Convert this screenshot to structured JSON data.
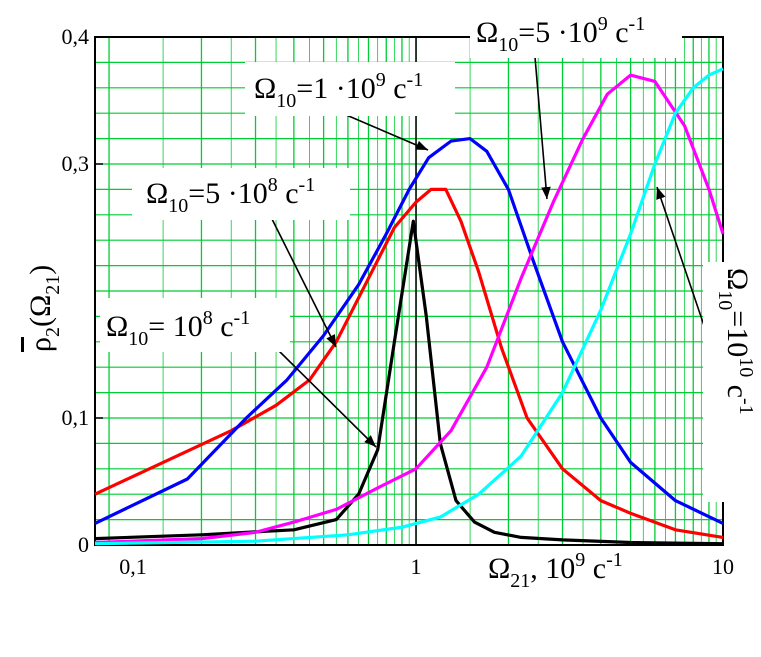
{
  "chart_data": {
    "type": "line",
    "x_scale": "log",
    "xlim": [
      0.09,
      10
    ],
    "ylim": [
      0,
      0.4
    ],
    "xlabel": {
      "base": "Ω",
      "sub": "21",
      "rest": ", 10",
      "sup": "9",
      "unit": " с",
      "unit_sup": "-1"
    },
    "ylabel": {
      "base": "ρ",
      "sub": "2",
      "paren_base": "(Ω",
      "paren_sub": "21",
      "close": ")"
    },
    "x_ticks": [
      {
        "value": 0.1,
        "label": "0,1"
      },
      {
        "value": 1,
        "label": "1"
      },
      {
        "value": 10,
        "label": "10"
      }
    ],
    "y_ticks": [
      {
        "value": 0,
        "label": "0"
      },
      {
        "value": 0.1,
        "label": "0,1"
      },
      {
        "value": 0.3,
        "label": "0,3"
      },
      {
        "value": 0.4,
        "label": "0,4"
      }
    ],
    "grid": true,
    "series": [
      {
        "color": "#000000",
        "x": [
          0.09,
          0.2,
          0.4,
          0.55,
          0.65,
          0.75,
          0.85,
          0.98,
          1.08,
          1.2,
          1.35,
          1.55,
          1.8,
          2.2,
          3,
          5,
          10
        ],
        "y": [
          0.005,
          0.008,
          0.012,
          0.02,
          0.04,
          0.075,
          0.16,
          0.255,
          0.18,
          0.08,
          0.035,
          0.018,
          0.01,
          0.006,
          0.004,
          0.002,
          0.001
        ]
      },
      {
        "color": "#ff0000",
        "x": [
          0.09,
          0.15,
          0.25,
          0.35,
          0.45,
          0.55,
          0.7,
          0.85,
          1.0,
          1.12,
          1.25,
          1.4,
          1.6,
          1.9,
          2.3,
          3,
          4,
          5,
          7,
          10
        ],
        "y": [
          0.04,
          0.065,
          0.09,
          0.11,
          0.13,
          0.16,
          0.21,
          0.25,
          0.27,
          0.28,
          0.28,
          0.255,
          0.215,
          0.155,
          0.1,
          0.06,
          0.035,
          0.025,
          0.012,
          0.006
        ]
      },
      {
        "color": "#0000ff",
        "x": [
          0.09,
          0.18,
          0.28,
          0.38,
          0.5,
          0.65,
          0.8,
          0.95,
          1.1,
          1.3,
          1.5,
          1.7,
          2.0,
          2.4,
          3,
          4,
          5,
          7,
          10
        ],
        "y": [
          0.017,
          0.052,
          0.1,
          0.13,
          0.165,
          0.205,
          0.245,
          0.28,
          0.305,
          0.318,
          0.32,
          0.31,
          0.28,
          0.225,
          0.16,
          0.1,
          0.065,
          0.035,
          0.017
        ]
      },
      {
        "color": "#ff00ff",
        "x": [
          0.09,
          0.2,
          0.3,
          0.4,
          0.55,
          0.75,
          1.0,
          1.3,
          1.7,
          2.2,
          2.8,
          3.5,
          4.2,
          5.0,
          6.0,
          7.5,
          9,
          10
        ],
        "y": [
          0.002,
          0.005,
          0.01,
          0.018,
          0.028,
          0.045,
          0.06,
          0.09,
          0.14,
          0.21,
          0.27,
          0.32,
          0.355,
          0.37,
          0.365,
          0.33,
          0.28,
          0.245
        ]
      },
      {
        "color": "#00ffff",
        "x": [
          0.09,
          0.3,
          0.6,
          0.9,
          1.2,
          1.6,
          2.2,
          3,
          4,
          5,
          6,
          7,
          8,
          9,
          10
        ],
        "y": [
          0.001,
          0.003,
          0.008,
          0.014,
          0.022,
          0.04,
          0.07,
          0.12,
          0.185,
          0.245,
          0.3,
          0.34,
          0.36,
          0.37,
          0.375
        ]
      }
    ],
    "annotations": [
      {
        "base": "Ω",
        "sub": "10",
        "text": "= 10",
        "sup": "8",
        "unit": " с",
        "unit_sup": "-1"
      },
      {
        "base": "Ω",
        "sub": "10",
        "text": "=5 ·10",
        "sup": "8",
        "unit": " с",
        "unit_sup": "-1"
      },
      {
        "base": "Ω",
        "sub": "10",
        "text": "=1 ·10",
        "sup": "9",
        "unit": " с",
        "unit_sup": "-1"
      },
      {
        "base": "Ω",
        "sub": "10",
        "text": "=5 ·10",
        "sup": "9",
        "unit": " с",
        "unit_sup": "-1"
      },
      {
        "base": "Ω",
        "sub": "10",
        "text": "=10",
        "sup": "10",
        "unit": " с",
        "unit_sup": "-1"
      }
    ]
  }
}
